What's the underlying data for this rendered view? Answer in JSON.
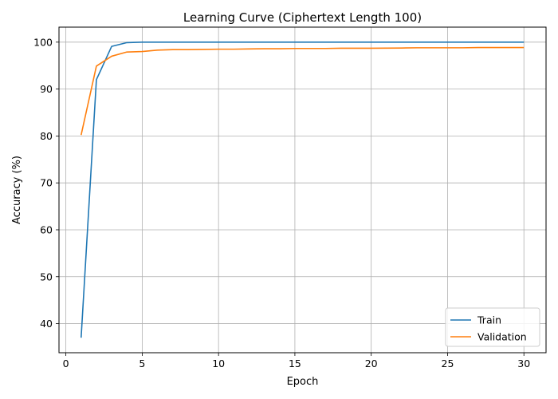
{
  "chart_data": {
    "type": "line",
    "title": "Learning Curve (Ciphertext Length 100)",
    "xlabel": "Epoch",
    "ylabel": "Accuracy (%)",
    "xlim": [
      -0.45,
      31.45
    ],
    "ylim": [
      33.8,
      103.2
    ],
    "xticks": [
      0,
      5,
      10,
      15,
      20,
      25,
      30
    ],
    "yticks": [
      40,
      50,
      60,
      70,
      80,
      90,
      100
    ],
    "grid": true,
    "legend": "bottom-right",
    "x": [
      1,
      2,
      3,
      4,
      5,
      6,
      7,
      8,
      9,
      10,
      11,
      12,
      13,
      14,
      15,
      16,
      17,
      18,
      19,
      20,
      21,
      22,
      23,
      24,
      25,
      26,
      27,
      28,
      29,
      30
    ],
    "series": [
      {
        "name": "Train",
        "color": "#1f77b4",
        "values": [
          37.0,
          92.0,
          99.1,
          99.9,
          100.0,
          100.0,
          100.0,
          100.0,
          100.0,
          100.0,
          100.0,
          100.0,
          100.0,
          100.0,
          100.0,
          100.0,
          100.0,
          100.0,
          100.0,
          100.0,
          100.0,
          100.0,
          100.0,
          100.0,
          100.0,
          100.0,
          100.0,
          100.0,
          100.0,
          100.0
        ]
      },
      {
        "name": "Validation",
        "color": "#ff7f0e",
        "values": [
          80.2,
          94.9,
          97.0,
          97.9,
          98.0,
          98.3,
          98.4,
          98.4,
          98.45,
          98.5,
          98.5,
          98.55,
          98.6,
          98.6,
          98.65,
          98.65,
          98.65,
          98.7,
          98.7,
          98.7,
          98.72,
          98.75,
          98.8,
          98.8,
          98.8,
          98.8,
          98.85,
          98.85,
          98.85,
          98.85
        ]
      }
    ]
  }
}
